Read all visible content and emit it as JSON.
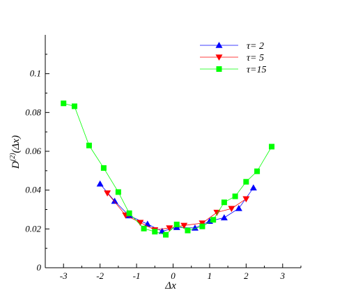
{
  "chart_data": {
    "type": "line",
    "xlabel": "Δx",
    "ylabel": "D(2)(Δx)",
    "ylabel_base": "D",
    "ylabel_sup": "(2)",
    "ylabel_tail": "(Δx)",
    "xlim": [
      -3.5,
      3.5
    ],
    "ylim": [
      0,
      0.12
    ],
    "xticks": [
      -3,
      -2,
      -1,
      0,
      1,
      2,
      3
    ],
    "xtick_labels": [
      "-3",
      "-2",
      "-1",
      "0",
      "1",
      "2",
      "3"
    ],
    "yticks": [
      0,
      0.02,
      0.04,
      0.06,
      0.08,
      0.1
    ],
    "ytick_labels": [
      "0",
      "0.02",
      "0.04",
      "0.06",
      "0.08",
      "0.1"
    ],
    "legend_position": "top-right",
    "series": [
      {
        "name": "τ= 2",
        "marker": "triangle-up",
        "color": "#0000ff",
        "x": [
          -2.0,
          -1.6,
          -1.2,
          -0.7,
          -0.3,
          0.1,
          0.6,
          1.0,
          1.4,
          1.8,
          2.2
        ],
        "y": [
          0.0432,
          0.0343,
          0.0268,
          0.0225,
          0.0188,
          0.0208,
          0.0205,
          0.024,
          0.0258,
          0.0306,
          0.0412
        ]
      },
      {
        "name": "τ= 5",
        "marker": "triangle-down",
        "color": "#ff0000",
        "x": [
          -1.8,
          -1.3,
          -0.9,
          -0.5,
          -0.1,
          0.3,
          0.8,
          1.2,
          1.6,
          2.0
        ],
        "y": [
          0.0385,
          0.0271,
          0.0233,
          0.0195,
          0.0205,
          0.0218,
          0.023,
          0.0285,
          0.0305,
          0.0355
        ]
      },
      {
        "name": "τ=15",
        "marker": "square",
        "color": "#00ff00",
        "x": [
          -3.0,
          -2.7,
          -2.3,
          -1.9,
          -1.5,
          -1.2,
          -0.8,
          -0.5,
          -0.2,
          0.1,
          0.4,
          0.8,
          1.1,
          1.4,
          1.7,
          2.0,
          2.3,
          2.7
        ],
        "y": [
          0.0847,
          0.0832,
          0.063,
          0.0514,
          0.039,
          0.0281,
          0.0202,
          0.0186,
          0.017,
          0.0223,
          0.0192,
          0.0213,
          0.0247,
          0.0337,
          0.0368,
          0.0443,
          0.0497,
          0.0624
        ]
      }
    ]
  }
}
